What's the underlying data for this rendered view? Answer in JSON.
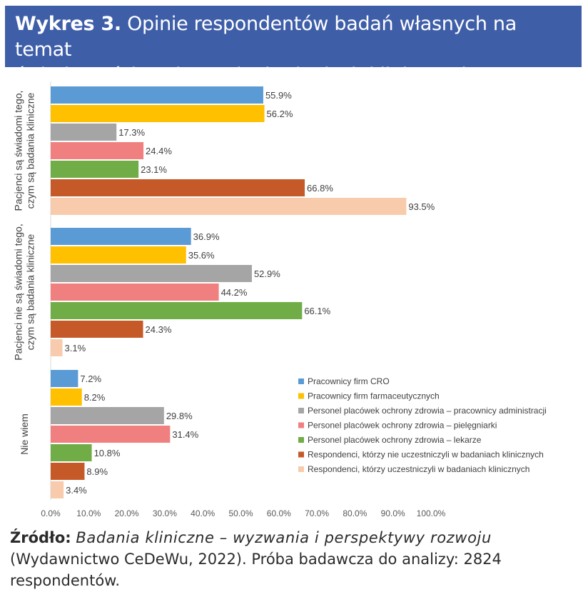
{
  "header": {
    "label": "Wykres 3.",
    "title": "Opinie respondentów badań własnych na temat",
    "title_line2": "świadomości społecznej o badaniach klinicznych",
    "background_color": "#3f5ea8"
  },
  "chart_data": {
    "type": "bar",
    "orientation": "horizontal",
    "title": "Opinie respondentów badań własnych na temat świadomości społecznej o badaniach klinicznych",
    "categories": [
      "Pacjenci są świadomi tego, czym są badania kliniczne",
      "Pacjenci nie są świadomi tego, czym są badania kliniczne",
      "Nie wiem"
    ],
    "category_label_lines": [
      [
        "Pacjenci są świadomi tego,",
        "czym są badania kliniczne"
      ],
      [
        "Pacjenci nie są świadomi tego,",
        "czym są badania kliniczne"
      ],
      [
        "Nie wiem"
      ]
    ],
    "series": [
      {
        "name": "Pracownicy firm CRO",
        "color": "#5b9bd5",
        "values": [
          55.9,
          36.9,
          7.2
        ],
        "labels": [
          "55.9%",
          "36.9%",
          "7.2%"
        ]
      },
      {
        "name": "Pracownicy firm farmaceutycznych",
        "color": "#ffc000",
        "values": [
          56.2,
          35.6,
          8.2
        ],
        "labels": [
          "56.2%",
          "35.6%",
          "8.2%"
        ]
      },
      {
        "name": "Personel placówek ochrony zdrowia – pracownicy administracji",
        "color": "#a5a5a5",
        "values": [
          17.3,
          52.9,
          29.8
        ],
        "labels": [
          "17.3%",
          "52.9%",
          "29.8%"
        ]
      },
      {
        "name": "Personel placówek ochrony zdrowia – pielęgniarki",
        "color": "#f08080",
        "values": [
          24.4,
          44.2,
          31.4
        ],
        "labels": [
          "24.4%",
          "44.2%",
          "31.4%"
        ]
      },
      {
        "name": "Personel placówek ochrony zdrowia – lekarze",
        "color": "#70ad47",
        "values": [
          23.1,
          66.1,
          10.8
        ],
        "labels": [
          "23.1%",
          "66.1%",
          "10.8%"
        ]
      },
      {
        "name": "Respondenci, którzy nie uczestniczyli w badaniach klinicznych",
        "color": "#c55a28",
        "values": [
          66.8,
          24.3,
          8.9
        ],
        "labels": [
          "66.8%",
          "24.3%",
          "8.9%"
        ]
      },
      {
        "name": "Respondenci, którzy uczestniczyli w badaniach klinicznych",
        "color": "#f8cbad",
        "values": [
          93.5,
          3.1,
          3.4
        ],
        "labels": [
          "93.5%",
          "3.1%",
          "3.4%"
        ]
      }
    ],
    "xlim": [
      0,
      100
    ],
    "xticks": [
      "0.0%",
      "10.0%",
      "20.0%",
      "30.0%",
      "40.0%",
      "50.0%",
      "60.0%",
      "70.0%",
      "80.0%",
      "90.0%",
      "100.0%"
    ],
    "xlabel": "",
    "ylabel": "",
    "grid": false,
    "legend_position": "lower-right"
  },
  "source": {
    "label": "Źródło:",
    "title": "Badania kliniczne – wyzwania i perspektywy rozwoju",
    "rest": "(Wydawnictwo CeDeWu, 2022). Próba badawcza do analizy: 2824 respondentów."
  }
}
